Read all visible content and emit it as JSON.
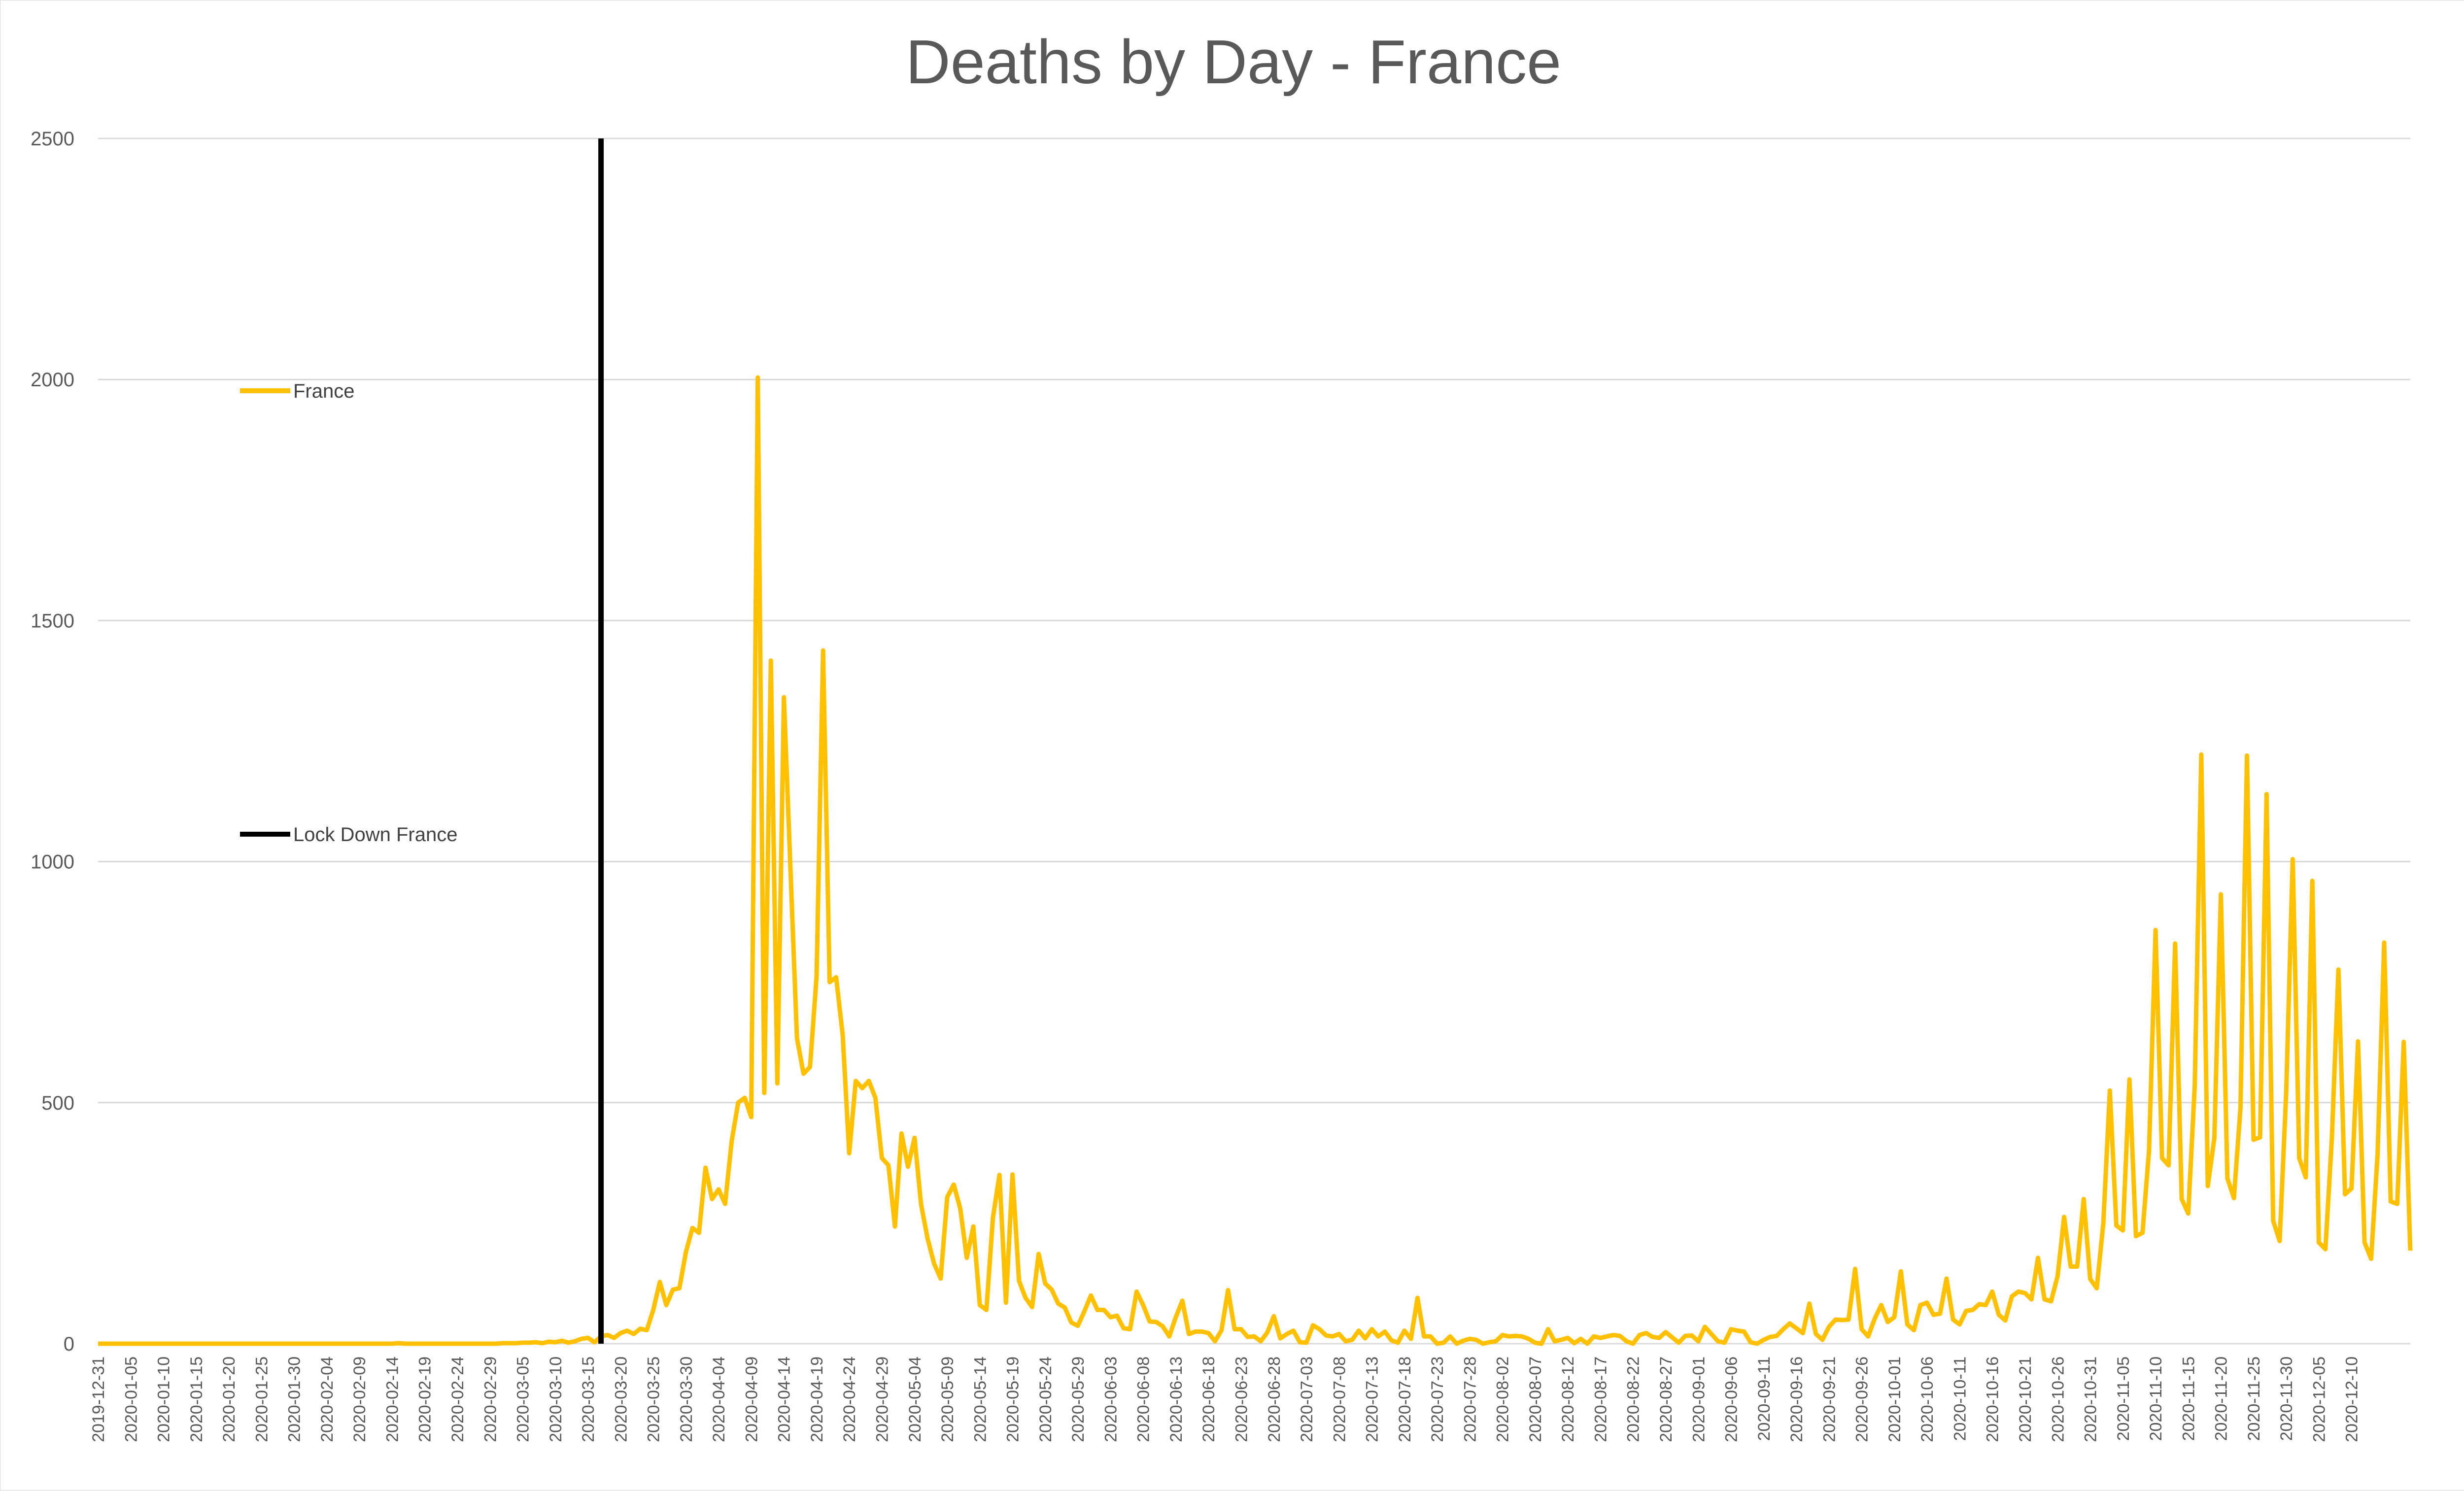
{
  "chart_data": {
    "type": "line",
    "title": "Deaths by Day - France",
    "xlabel": "",
    "ylabel": "",
    "ylim": [
      0,
      2500
    ],
    "yticks": [
      "0",
      "500",
      "1000",
      "1500",
      "2000",
      "2500"
    ],
    "grid": "horizontal",
    "x_start": "2019-12-31",
    "x_labels": [
      "2019-12-31",
      "2020-01-05",
      "2020-01-10",
      "2020-01-15",
      "2020-01-20",
      "2020-01-25",
      "2020-01-30",
      "2020-02-04",
      "2020-02-09",
      "2020-02-14",
      "2020-02-19",
      "2020-02-24",
      "2020-02-29",
      "2020-03-05",
      "2020-03-10",
      "2020-03-15",
      "2020-03-20",
      "2020-03-25",
      "2020-03-30",
      "2020-04-04",
      "2020-04-09",
      "2020-04-14",
      "2020-04-19",
      "2020-04-24",
      "2020-04-29",
      "2020-05-04",
      "2020-05-09",
      "2020-05-14",
      "2020-05-19",
      "2020-05-24",
      "2020-05-29",
      "2020-06-03",
      "2020-06-08",
      "2020-06-13",
      "2020-06-18",
      "2020-06-23",
      "2020-06-28",
      "2020-07-03",
      "2020-07-08",
      "2020-07-13",
      "2020-07-18",
      "2020-07-23",
      "2020-07-28",
      "2020-08-02",
      "2020-08-07",
      "2020-08-12",
      "2020-08-17",
      "2020-08-22",
      "2020-08-27",
      "2020-09-01",
      "2020-09-06",
      "2020-09-11",
      "2020-09-16",
      "2020-09-21",
      "2020-09-26",
      "2020-10-01",
      "2020-10-06",
      "2020-10-11",
      "2020-10-16",
      "2020-10-21",
      "2020-10-26",
      "2020-10-31",
      "2020-11-05",
      "2020-11-10",
      "2020-11-15",
      "2020-11-20",
      "2020-11-25",
      "2020-11-30",
      "2020-12-05",
      "2020-12-10"
    ],
    "series": [
      {
        "name": "France",
        "color": "#ffc000",
        "values": [
          0,
          0,
          0,
          0,
          0,
          0,
          0,
          0,
          0,
          0,
          0,
          0,
          0,
          0,
          0,
          0,
          0,
          0,
          0,
          0,
          0,
          0,
          0,
          0,
          0,
          0,
          0,
          0,
          0,
          0,
          0,
          0,
          0,
          0,
          0,
          0,
          0,
          0,
          0,
          0,
          0,
          0,
          0,
          0,
          0,
          0,
          1,
          0,
          0,
          0,
          0,
          0,
          0,
          0,
          0,
          0,
          0,
          0,
          0,
          0,
          0,
          0,
          1,
          1,
          1,
          2,
          2,
          3,
          1,
          4,
          3,
          6,
          2,
          5,
          10,
          12,
          3,
          15,
          18,
          12,
          22,
          27,
          20,
          31,
          28,
          70,
          128,
          80,
          112,
          115,
          190,
          240,
          230,
          365,
          300,
          320,
          290,
          420,
          500,
          510,
          470,
          2004,
          520,
          1417,
          540,
          1341,
          987,
          634,
          560,
          574,
          762,
          1438,
          750,
          760,
          640,
          395,
          545,
          530,
          545,
          510,
          385,
          370,
          243,
          436,
          367,
          427,
          289,
          218,
          166,
          135,
          304,
          330,
          280,
          178,
          243,
          80,
          70,
          261,
          350,
          85,
          351,
          130,
          95,
          76,
          186,
          125,
          112,
          83,
          75,
          44,
          37,
          67,
          100,
          70,
          70,
          55,
          58,
          32,
          30,
          108,
          80,
          46,
          45,
          36,
          15,
          55,
          89,
          20,
          25,
          25,
          22,
          5,
          28,
          111,
          30,
          30,
          14,
          15,
          5,
          23,
          57,
          11,
          20,
          27,
          3,
          2,
          38,
          30,
          17,
          15,
          20,
          5,
          8,
          27,
          11,
          30,
          15,
          25,
          7,
          2,
          27,
          10,
          95,
          15,
          15,
          0,
          2,
          15,
          0,
          6,
          10,
          8,
          0,
          3,
          5,
          18,
          15,
          16,
          15,
          10,
          2,
          0,
          30,
          5,
          8,
          12,
          1,
          10,
          0,
          15,
          12,
          15,
          18,
          16,
          5,
          0,
          18,
          22,
          14,
          12,
          24,
          13,
          2,
          16,
          17,
          5,
          35,
          20,
          5,
          2,
          30,
          27,
          25,
          3,
          0,
          8,
          14,
          16,
          30,
          42,
          32,
          22,
          83,
          20,
          8,
          35,
          50,
          49,
          50,
          155,
          30,
          15,
          52,
          80,
          45,
          55,
          150,
          40,
          28,
          80,
          85,
          60,
          62,
          135,
          50,
          40,
          68,
          70,
          82,
          80,
          108,
          60,
          48,
          98,
          108,
          105,
          92,
          178,
          92,
          88,
          140,
          263,
          160,
          160,
          300,
          134,
          115,
          250,
          525,
          245,
          235,
          548,
          223,
          230,
          400,
          858,
          385,
          370,
          830,
          300,
          270,
          535,
          1222,
          327,
          427,
          932,
          343,
          302,
          489,
          1220,
          423,
          428,
          1140,
          255,
          213,
          522,
          1005,
          385,
          345,
          960,
          210,
          196,
          427,
          776,
          310,
          322,
          627,
          210,
          176,
          394,
          832,
          295,
          290,
          626,
          193
        ]
      },
      {
        "name": "Lock Down France",
        "color": "#000000",
        "event_date": "2020-03-17"
      }
    ],
    "legend": [
      {
        "label": "France",
        "color": "#ffc000"
      },
      {
        "label": "Lock Down France",
        "color": "#000000"
      }
    ],
    "legend_position": "left"
  }
}
